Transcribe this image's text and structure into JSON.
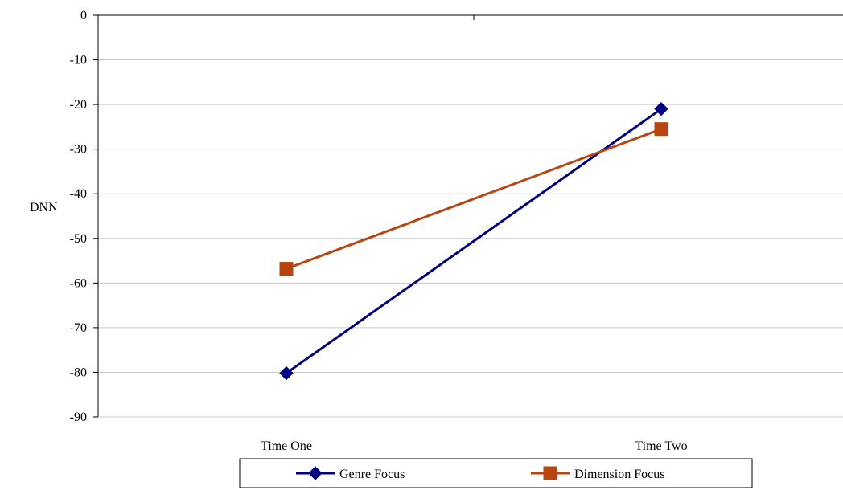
{
  "chart_data": {
    "type": "line",
    "categories": [
      "Time One",
      "Time Two"
    ],
    "ylabel": "DNN",
    "ylim": [
      -90,
      0
    ],
    "yticks": [
      0,
      -10,
      -20,
      -30,
      -40,
      -50,
      -60,
      -70,
      -80,
      -90
    ],
    "grid": true,
    "legend_position": "bottom",
    "series": [
      {
        "name": "Genre Focus",
        "values": [
          -80.2,
          -21.0
        ],
        "color": "#000080",
        "marker": "diamond"
      },
      {
        "name": "Dimension Focus",
        "values": [
          -56.8,
          -25.5
        ],
        "color": "#B8450F",
        "marker": "square"
      }
    ]
  }
}
